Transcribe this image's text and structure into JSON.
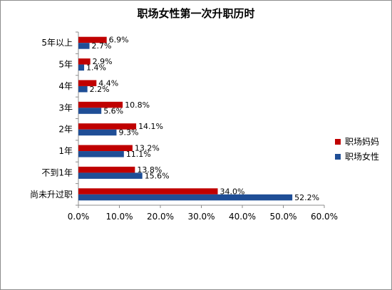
{
  "chart_data": {
    "type": "bar",
    "orientation": "horizontal",
    "title": "职场女性第一次升职历时",
    "categories": [
      "5年以上",
      "5年",
      "4年",
      "3年",
      "2年",
      "1年",
      "不到1年",
      "尚未升过职"
    ],
    "series": [
      {
        "name": "职场妈妈",
        "color": "#c00000",
        "values": [
          6.9,
          2.9,
          4.4,
          10.8,
          14.1,
          13.2,
          13.8,
          34.0
        ],
        "labels": [
          "6.9%",
          "2.9%",
          "4.4%",
          "10.8%",
          "14.1%",
          "13.2%",
          "13.8%",
          "34.0%"
        ]
      },
      {
        "name": "职场女性",
        "color": "#1f4e96",
        "values": [
          2.7,
          1.4,
          2.2,
          5.6,
          9.3,
          11.1,
          15.6,
          52.2
        ],
        "labels": [
          "2.7%",
          "1.4%",
          "2.2%",
          "5.6%",
          "9.3%",
          "11.1%",
          "15.6%",
          "52.2%"
        ]
      }
    ],
    "xlim": [
      0,
      60
    ],
    "xticks": [
      0,
      10,
      20,
      30,
      40,
      50,
      60
    ],
    "xtick_labels": [
      "0.0%",
      "10.0%",
      "20.0%",
      "30.0%",
      "40.0%",
      "50.0%",
      "60.0%"
    ],
    "grid": false,
    "legend_position": "right"
  }
}
